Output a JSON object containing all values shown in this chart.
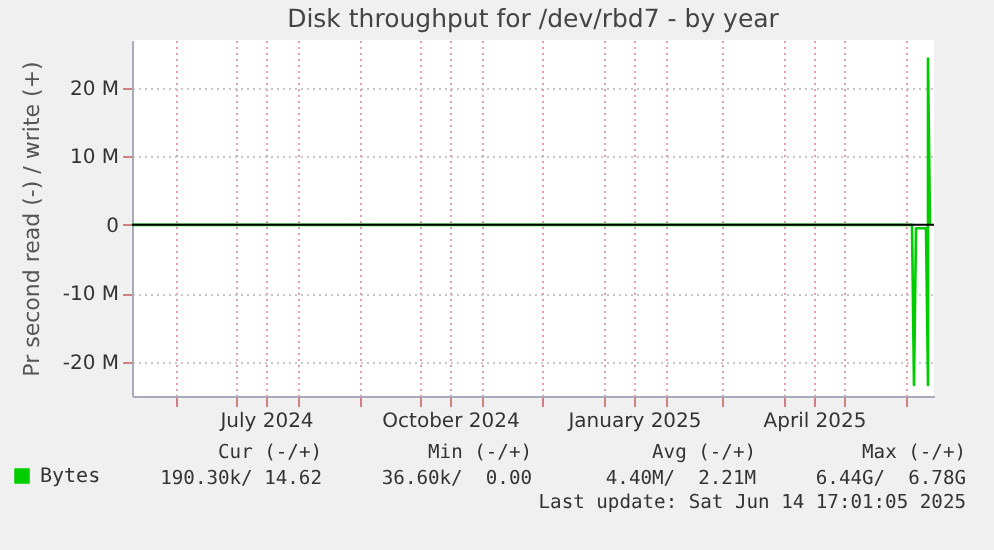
{
  "chart_data": {
    "type": "line",
    "title": "Disk throughput for /dev/rbd7 - by year",
    "ylabel": "Pr second read (-) / write (+)",
    "xlim": [
      "2024-05-10",
      "2025-06-15"
    ],
    "xticks": [
      {
        "value": "2024-06-01",
        "label": null
      },
      {
        "value": "2024-07-01",
        "label": null
      },
      {
        "value": "2024-07-16",
        "label": "July 2024"
      },
      {
        "value": "2024-08-01",
        "label": null
      },
      {
        "value": "2024-09-01",
        "label": null
      },
      {
        "value": "2024-10-01",
        "label": null
      },
      {
        "value": "2024-10-16",
        "label": "October 2024"
      },
      {
        "value": "2024-11-01",
        "label": null
      },
      {
        "value": "2024-12-01",
        "label": null
      },
      {
        "value": "2025-01-01",
        "label": null
      },
      {
        "value": "2025-01-16",
        "label": "January 2025"
      },
      {
        "value": "2025-02-01",
        "label": null
      },
      {
        "value": "2025-03-01",
        "label": null
      },
      {
        "value": "2025-04-01",
        "label": null
      },
      {
        "value": "2025-04-16",
        "label": "April 2025"
      },
      {
        "value": "2025-05-01",
        "label": null
      },
      {
        "value": "2025-06-01",
        "label": null
      }
    ],
    "ylim": [
      -25,
      27
    ],
    "yticks": [
      {
        "value": -20,
        "label": "-20 M"
      },
      {
        "value": -10,
        "label": "-10 M"
      },
      {
        "value": 0,
        "label": "0"
      },
      {
        "value": 10,
        "label": "10 M"
      },
      {
        "value": 20,
        "label": "20 M"
      }
    ],
    "grid": true,
    "legend": "bottom left",
    "series": [
      {
        "name": "Bytes",
        "color": "#00cc00",
        "x": [
          "2024-05-10",
          "2025-06-04",
          "2025-06-05",
          "2025-06-06",
          "2025-06-11",
          "2025-06-12",
          "2025-06-12",
          "2025-06-13"
        ],
        "values": [
          0,
          0,
          -23.4,
          -0.5,
          -0.5,
          -23.4,
          24.3,
          0
        ]
      }
    ],
    "ref_lines": [
      {
        "axis": "y",
        "value": 0,
        "color": "#000000"
      }
    ],
    "annotations": [
      "Cur (-/+)",
      "190.30k/ 14.62",
      "Min (-/+)",
      "36.60k/  0.00",
      "Avg (-/+)",
      "4.40M/  2.21M",
      "Max (-/+)",
      "6.44G/  6.78G",
      "Last update: Sat Jun 14 17:01:05 2025"
    ]
  }
}
